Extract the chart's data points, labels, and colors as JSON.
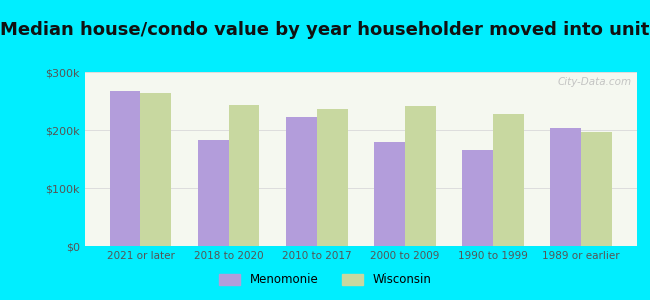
{
  "title": "Median house/condo value by year householder moved into unit",
  "categories": [
    "2021 or later",
    "2018 to 2020",
    "2010 to 2017",
    "2000 to 2009",
    "1990 to 1999",
    "1989 or earlier"
  ],
  "menomonie": [
    268000,
    183000,
    222000,
    180000,
    165000,
    203000
  ],
  "wisconsin": [
    263000,
    243000,
    237000,
    242000,
    228000,
    196000
  ],
  "bar_color_menomonie": "#b39ddb",
  "bar_color_wisconsin": "#c8d8a0",
  "background_color": "#00eeff",
  "plot_bg_gradient_top": "#e8f0e0",
  "plot_bg_gradient_bottom": "#f5f8f0",
  "ylim": [
    0,
    300000
  ],
  "yticks": [
    0,
    100000,
    200000,
    300000
  ],
  "ytick_labels": [
    "$0",
    "$100k",
    "$200k",
    "$300k"
  ],
  "watermark": "City-Data.com",
  "legend_menomonie": "Menomonie",
  "legend_wisconsin": "Wisconsin",
  "title_fontsize": 13,
  "bar_width": 0.35,
  "grid_color": "#dddddd",
  "label_color": "#555555",
  "title_color": "#111111"
}
